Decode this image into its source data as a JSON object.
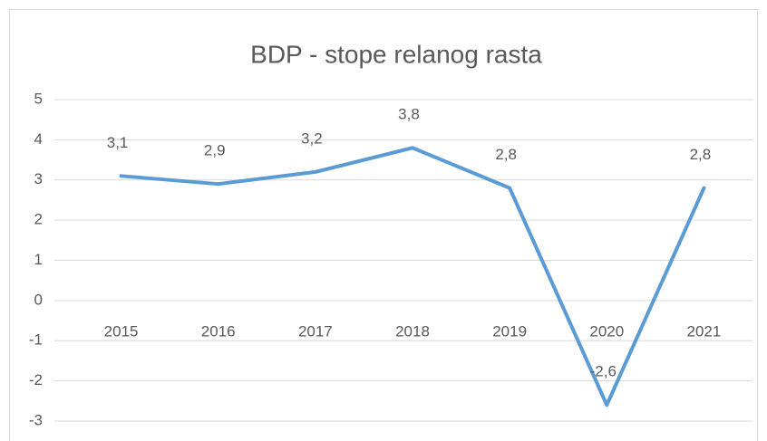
{
  "chart_data": {
    "type": "line",
    "title": "BDP - stope relanog rasta",
    "categories": [
      "2015",
      "2016",
      "2017",
      "2018",
      "2019",
      "2020",
      "2021"
    ],
    "series": [
      {
        "name": "BDP",
        "color": "#5b9bd5",
        "values": [
          3.1,
          2.9,
          3.2,
          3.8,
          2.8,
          -2.6,
          2.8
        ],
        "value_labels": [
          "3,1",
          "2,9",
          "3,2",
          "3,8",
          "2,8",
          "-2,6",
          "2,8"
        ]
      }
    ],
    "ylim": [
      -3,
      5
    ],
    "yticks": [
      -3,
      -2,
      -1,
      0,
      1,
      2,
      3,
      4,
      5
    ],
    "grid": true
  }
}
